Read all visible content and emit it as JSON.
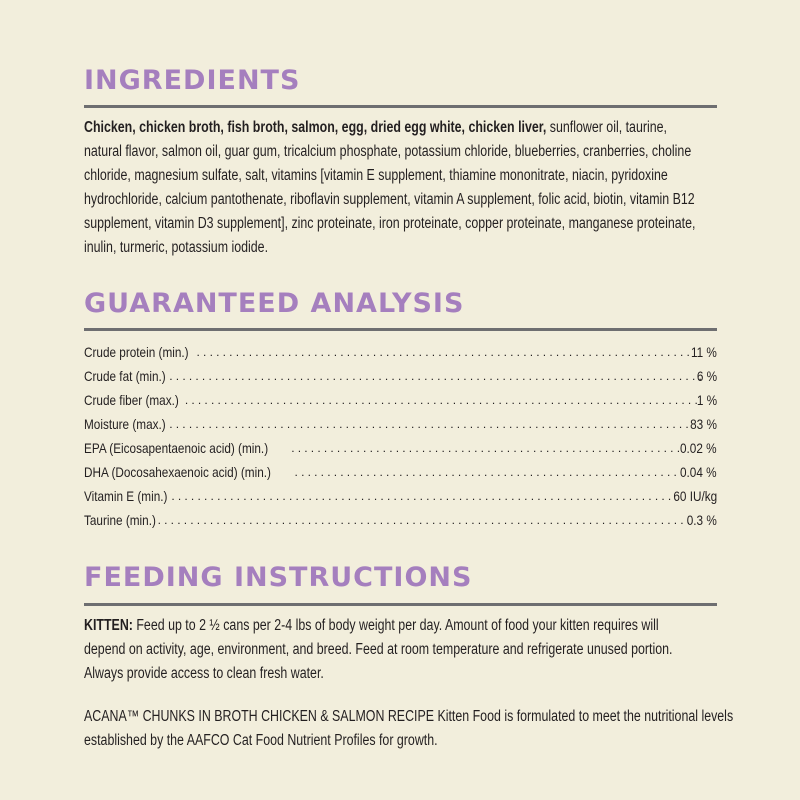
{
  "colors": {
    "background": "#f2eedc",
    "heading": "#a57fbe",
    "rule": "#6e6e70",
    "text": "#231f20"
  },
  "ingredients": {
    "title": "INGREDIENTS",
    "bold": "Chicken, chicken broth, fish broth, salmon, egg, dried egg white, chicken liver,",
    "lines": [
      " sunflower oil, taurine,",
      "natural flavor, salmon oil, guar gum, tricalcium phosphate, potassium chloride, blueberries, cranberries, choline",
      "chloride, magnesium sulfate, salt, vitamins [vitamin E supplement, thiamine mononitrate, niacin, pyridoxine",
      "hydrochloride, calcium pantothenate, riboflavin supplement, vitamin A supplement, folic acid, biotin, vitamin B12",
      "supplement, vitamin D3 supplement], zinc proteinate, iron proteinate, copper proteinate, manganese proteinate,",
      "inulin, turmeric, potassium iodide."
    ]
  },
  "analysis": {
    "title": "GUARANTEED ANALYSIS",
    "rows": [
      {
        "label": "Crude protein (min.)",
        "value": "11 %"
      },
      {
        "label": "Crude fat (min.)",
        "value": "6 %"
      },
      {
        "label": "Crude fiber (max.)",
        "value": "1 %"
      },
      {
        "label": "Moisture (max.)",
        "value": "83 %"
      },
      {
        "label": "EPA (Eicosapentaenoic acid) (min.)",
        "value": "0.02 %"
      },
      {
        "label": "DHA (Docosahexaenoic acid) (min.)",
        "value": "0.04 %"
      },
      {
        "label": "Vitamin E (min.)",
        "value": "60 IU/kg"
      },
      {
        "label": "Taurine (min.)",
        "value": "0.3 %"
      }
    ]
  },
  "feeding": {
    "title": "FEEDING INSTRUCTIONS",
    "kitten_label": "KITTEN:",
    "lines": [
      " Feed up to 2 ½ cans per 2-4 lbs of body weight per day. Amount of food your kitten requires will",
      "depend on activity, age, environment, and breed. Feed at room temperature and refrigerate unused portion.",
      "Always provide access to clean fresh water."
    ],
    "statement_lines": [
      "ACANA™ CHUNKS IN BROTH CHICKEN & SALMON RECIPE Kitten Food is formulated to meet the nutritional levels",
      "established by the AAFCO Cat Food Nutrient Profiles for growth."
    ]
  }
}
